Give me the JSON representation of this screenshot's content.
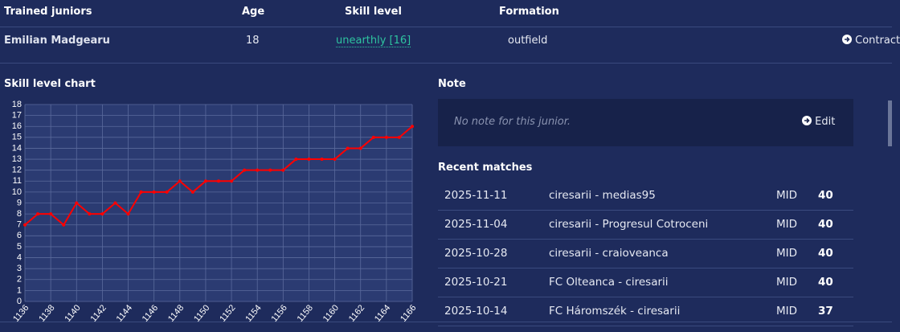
{
  "header": {
    "columns": [
      "Trained juniors",
      "Age",
      "Skill level",
      "Formation"
    ]
  },
  "junior": {
    "name": "Emilian Madgearu",
    "age": 18,
    "skill": "unearthly [16]",
    "formation": "outfield",
    "action": "Contract"
  },
  "chart_data": {
    "type": "line",
    "title": "Skill level chart",
    "x": [
      1136,
      1137,
      1138,
      1139,
      1140,
      1141,
      1142,
      1143,
      1144,
      1145,
      1146,
      1147,
      1148,
      1149,
      1150,
      1151,
      1152,
      1153,
      1154,
      1155,
      1156,
      1157,
      1158,
      1159,
      1160,
      1161,
      1162,
      1163,
      1164,
      1165,
      1166
    ],
    "values": [
      7,
      8,
      8,
      7,
      9,
      8,
      8,
      9,
      8,
      10,
      10,
      10,
      11,
      10,
      11,
      11,
      11,
      12,
      12,
      12,
      12,
      13,
      13,
      13,
      13,
      14,
      14,
      15,
      15,
      15,
      16
    ],
    "color": "#ff0000",
    "xlim": [
      1136,
      1166
    ],
    "ylim": [
      0,
      18
    ],
    "xticks": [
      1136,
      1138,
      1140,
      1142,
      1144,
      1146,
      1148,
      1150,
      1152,
      1154,
      1156,
      1158,
      1160,
      1162,
      1164,
      1166
    ],
    "yticks": [
      0,
      1,
      2,
      3,
      4,
      5,
      6,
      7,
      8,
      9,
      10,
      11,
      12,
      13,
      14,
      15,
      16,
      17,
      18
    ],
    "grid": true
  },
  "note": {
    "title": "Note",
    "text": "No note for this junior.",
    "button": "Edit"
  },
  "matches": {
    "title": "Recent matches",
    "rows": [
      [
        "2025-11-11",
        "ciresarii - medias95",
        "MID",
        "40"
      ],
      [
        "2025-11-04",
        "ciresarii - Progresul Cotroceni",
        "MID",
        "40"
      ],
      [
        "2025-10-28",
        "ciresarii - craioveanca",
        "MID",
        "40"
      ],
      [
        "2025-10-21",
        "FC Olteanca - ciresarii",
        "MID",
        "40"
      ],
      [
        "2025-10-14",
        "FC Háromszék - ciresarii",
        "MID",
        "37"
      ]
    ]
  }
}
